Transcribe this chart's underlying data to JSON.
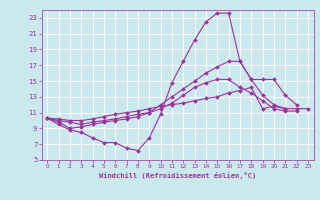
{
  "xlabel": "Windchill (Refroidissement éolien,°C)",
  "background_color": "#cce8ef",
  "grid_color": "#aacccc",
  "line_color": "#993399",
  "xlim": [
    -0.5,
    23.5
  ],
  "ylim": [
    5,
    24
  ],
  "xticks": [
    0,
    1,
    2,
    3,
    4,
    5,
    6,
    7,
    8,
    9,
    10,
    11,
    12,
    13,
    14,
    15,
    16,
    17,
    18,
    19,
    20,
    21,
    22,
    23
  ],
  "yticks": [
    5,
    7,
    9,
    11,
    13,
    15,
    17,
    19,
    21,
    23
  ],
  "series": [
    {
      "x": [
        0,
        1,
        2,
        3,
        4,
        5,
        6,
        7,
        8,
        9,
        10,
        11,
        12,
        13,
        14,
        15,
        16,
        17,
        18,
        19,
        20,
        21
      ],
      "y": [
        10.3,
        9.5,
        8.8,
        8.5,
        7.8,
        7.2,
        7.2,
        6.5,
        6.2,
        7.8,
        10.8,
        14.8,
        17.5,
        20.2,
        22.5,
        23.6,
        23.6,
        17.5,
        15.2,
        13.2,
        12.0,
        11.5
      ]
    },
    {
      "x": [
        0,
        1,
        2,
        3,
        4,
        5,
        6,
        7,
        8,
        9,
        10,
        11,
        12,
        13,
        14,
        15,
        16,
        17,
        18,
        19,
        20,
        21,
        22
      ],
      "y": [
        10.3,
        9.8,
        9.0,
        9.2,
        9.5,
        9.8,
        10.0,
        10.2,
        10.5,
        11.0,
        12.0,
        13.0,
        14.0,
        15.0,
        16.0,
        16.8,
        17.5,
        17.5,
        15.2,
        15.2,
        15.2,
        13.2,
        12.0
      ]
    },
    {
      "x": [
        0,
        1,
        2,
        3,
        4,
        5,
        6,
        7,
        8,
        9,
        10,
        11,
        12,
        13,
        14,
        15,
        16,
        17,
        18,
        19,
        20,
        21,
        22
      ],
      "y": [
        10.3,
        10.0,
        9.8,
        9.5,
        9.8,
        10.0,
        10.2,
        10.5,
        10.8,
        11.0,
        11.5,
        12.2,
        13.2,
        14.2,
        14.8,
        15.2,
        15.2,
        14.2,
        13.5,
        12.5,
        11.5,
        11.2,
        11.2
      ]
    },
    {
      "x": [
        0,
        1,
        2,
        3,
        4,
        5,
        6,
        7,
        8,
        9,
        10,
        11,
        12,
        13,
        14,
        15,
        16,
        17,
        18,
        19,
        20,
        21,
        22,
        23
      ],
      "y": [
        10.3,
        10.2,
        10.0,
        10.0,
        10.2,
        10.5,
        10.8,
        11.0,
        11.2,
        11.5,
        11.8,
        12.0,
        12.2,
        12.5,
        12.8,
        13.0,
        13.5,
        13.8,
        14.2,
        11.5,
        11.8,
        11.5,
        11.5,
        11.5
      ]
    }
  ]
}
